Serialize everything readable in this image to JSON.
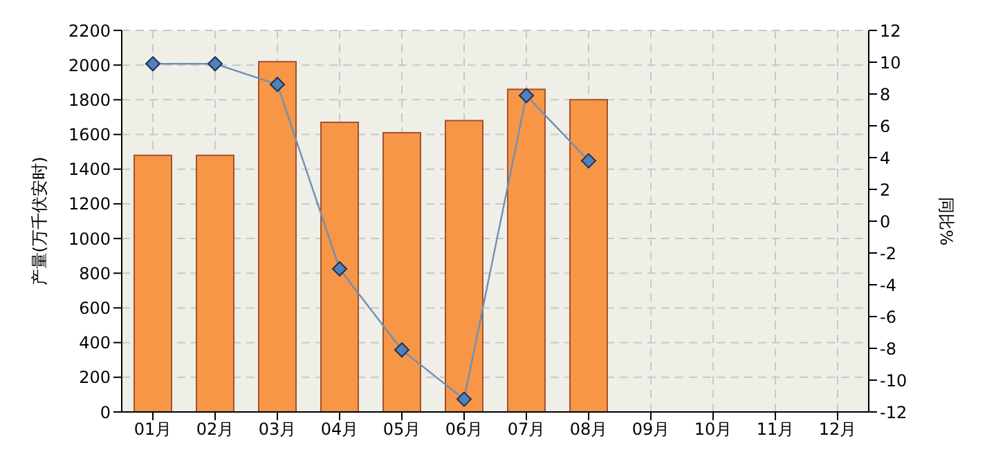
{
  "chart_data": {
    "type": "bar",
    "categories": [
      "01月",
      "02月",
      "03月",
      "04月",
      "05月",
      "06月",
      "07月",
      "08月",
      "09月",
      "10月",
      "11月",
      "12月"
    ],
    "series": [
      {
        "color": "#f79646",
        "values": [
          1480,
          1480,
          2020,
          1670,
          1610,
          1680,
          1860,
          1800,
          null,
          null,
          null,
          null
        ]
      },
      {
        "type": "line",
        "axis": "y2",
        "color": "#4f81bd",
        "marker": "diamond",
        "values": [
          9.9,
          9.9,
          8.6,
          -3.0,
          -8.1,
          -11.2,
          7.9,
          3.8,
          null,
          null,
          null,
          null
        ]
      }
    ],
    "ylabel": "产量(万千伏安时)",
    "y2label": "同比%",
    "ylim": [
      0,
      2200
    ],
    "yticks": [
      0,
      200,
      400,
      600,
      800,
      1000,
      1200,
      1400,
      1600,
      1800,
      2000,
      2200
    ],
    "y2lim": [
      -12,
      12
    ],
    "y2ticks": [
      -12,
      -10,
      -8,
      -6,
      -4,
      -2,
      0,
      2,
      4,
      6,
      8,
      10,
      12
    ],
    "grid": true
  }
}
